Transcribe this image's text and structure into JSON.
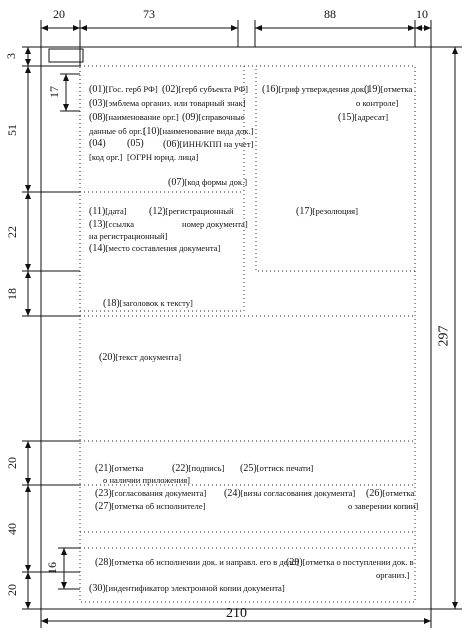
{
  "dimensions": {
    "top": [
      "20",
      "73",
      "88",
      "10"
    ],
    "left": [
      "3",
      "17",
      "51",
      "22",
      "18",
      "20",
      "40",
      "16",
      "20"
    ],
    "right": "297",
    "bottom": "210"
  },
  "fields": {
    "f01": {
      "num": "(01)",
      "text": "[Гос. герб РФ]"
    },
    "f02": {
      "num": "(02)",
      "text": "[герб субъекта РФ]"
    },
    "f03": {
      "num": "(03)",
      "text": "[эмблема организ. или товарный знак]"
    },
    "f08": {
      "num": "(08)",
      "text": "[наименование орг.]"
    },
    "f09": {
      "num": "(09)",
      "text": "[справочные"
    },
    "f09b": "данные об орг.]",
    "f10": {
      "num": "(10)",
      "text": "[наименование вида док.]"
    },
    "f04": {
      "num": "(04)",
      "text": "[код орг.]"
    },
    "f05": {
      "num": "(05)",
      "text": "[ОГРН юрид. лица]"
    },
    "f06": {
      "num": "(06)",
      "text": "[ИНН/КПП на учет]"
    },
    "f07": {
      "num": "(07)",
      "text": "[код формы док.]"
    },
    "f11": {
      "num": "(11)",
      "text": "[дата]"
    },
    "f12": {
      "num": "(12)",
      "text": "[регистрационный"
    },
    "f12b": "номер документа]",
    "f13": {
      "num": "(13)",
      "text": "[ссылка"
    },
    "f13b": "на регистрационный]",
    "f14": {
      "num": "(14)",
      "text": "[место составления документа]"
    },
    "f16": {
      "num": "(16)",
      "text": "[гриф утверждения док.]"
    },
    "f19": {
      "num": "(19)",
      "text": "[отметка"
    },
    "f19b": "о контроле]",
    "f15": {
      "num": "(15)",
      "text": "[адресат]"
    },
    "f17": {
      "num": "(17)",
      "text": "[резолюция]"
    },
    "f18": {
      "num": "(18)",
      "text": "[заголовок к тексту]"
    },
    "f20": {
      "num": "(20)",
      "text": "[текст документа]"
    },
    "f21": {
      "num": "(21)",
      "text": "[отметка"
    },
    "f21b": "о наличии приложения]",
    "f22": {
      "num": "(22)",
      "text": "[подпись]"
    },
    "f25": {
      "num": "(25)",
      "text": "[оттиск печати]"
    },
    "f23": {
      "num": "(23)",
      "text": "[согласования документа]"
    },
    "f24": {
      "num": "(24)",
      "text": "[визы согласования документа]"
    },
    "f26": {
      "num": "(26)",
      "text": "[отметка"
    },
    "f26b": "о заверении копии]",
    "f27": {
      "num": "(27)",
      "text": "[отметка об исполнителе]"
    },
    "f28": {
      "num": "(28)",
      "text": "[отметка об исполнении док. и направл. его в дело]"
    },
    "f29": {
      "num": "(29)",
      "text": "[отметка о поступлении док. в"
    },
    "f29b": "организ.]",
    "f30": {
      "num": "(30)",
      "text": "[индентификатор электронной копии документа]"
    }
  }
}
